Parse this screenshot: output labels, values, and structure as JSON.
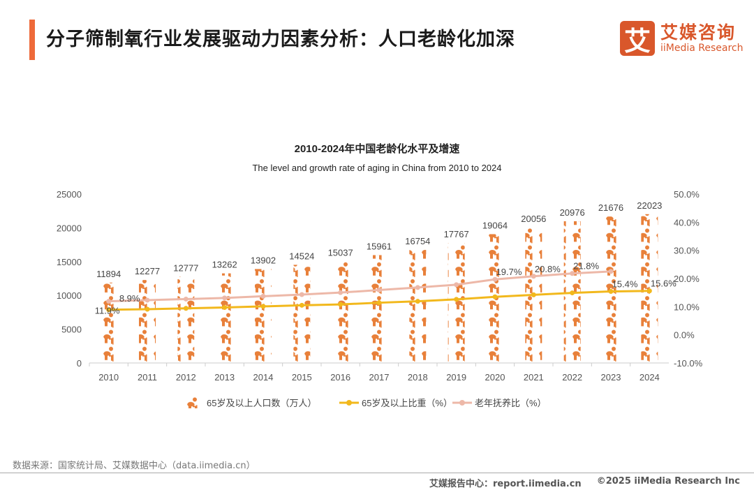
{
  "header": {
    "title": "分子筛制氧行业发展驱动力因素分析：人口老龄化加深"
  },
  "logo": {
    "mark": "艾",
    "cn": "艾媒咨询",
    "en": "iiMedia Research"
  },
  "chart_data": {
    "type": "bar+line",
    "title": "2010-2024年中国老龄化水平及增速",
    "subtitle": "The level and growth rate of aging in China from 2010 to 2024",
    "categories": [
      "2010",
      "2011",
      "2012",
      "2013",
      "2014",
      "2015",
      "2016",
      "2017",
      "2018",
      "2019",
      "2020",
      "2021",
      "2022",
      "2023",
      "2024"
    ],
    "left_axis": {
      "range": [
        0,
        25000
      ],
      "ticks": [
        "0",
        "5000",
        "10000",
        "15000",
        "20000",
        "25000"
      ]
    },
    "right_axis": {
      "range": [
        -10,
        50
      ],
      "ticks": [
        "-10.0%",
        "0.0%",
        "10.0%",
        "20.0%",
        "30.0%",
        "40.0%",
        "50.0%"
      ]
    },
    "grid": false,
    "legend_position": "bottom",
    "series": [
      {
        "name": "65岁及以上人口数（万人）",
        "type": "pictograph-bar",
        "axis": "left",
        "color": "#E8803A",
        "values": [
          11894,
          12277,
          12777,
          13262,
          13902,
          14524,
          15037,
          15961,
          16754,
          17767,
          19064,
          20056,
          20976,
          21676,
          22023
        ],
        "labels": [
          "11894",
          "12277",
          "12777",
          "13262",
          "13902",
          "14524",
          "15037",
          "15961",
          "16754",
          "17767",
          "19064",
          "20056",
          "20976",
          "21676",
          "22023"
        ]
      },
      {
        "name": "65岁及以上比重（%）",
        "type": "line",
        "axis": "right",
        "color": "#F2B81C",
        "values": [
          8.9,
          9.1,
          9.4,
          9.7,
          10.1,
          10.5,
          10.8,
          11.4,
          11.9,
          12.6,
          13.5,
          14.2,
          14.9,
          15.4,
          15.6
        ],
        "labels": {
          "0": "8.9%",
          "13": "15.4%",
          "14": "15.6%"
        }
      },
      {
        "name": "老年抚养比（%）",
        "type": "line",
        "axis": "right",
        "color": "#EDB8A8",
        "values": [
          11.9,
          12.3,
          12.7,
          13.1,
          13.7,
          14.3,
          15.0,
          15.9,
          16.8,
          17.8,
          19.7,
          20.8,
          21.8,
          22.5,
          null
        ],
        "labels": {
          "0": "11.9%",
          "10": "19.7%",
          "11": "20.8%",
          "12": "21.8%"
        }
      }
    ]
  },
  "source": "数据来源：国家统计局、艾媒数据中心（data.iimedia.cn）",
  "footer": {
    "report": "艾媒报告中心：report.iimedia.cn",
    "copyright": "©2025  iiMedia Research  Inc"
  }
}
